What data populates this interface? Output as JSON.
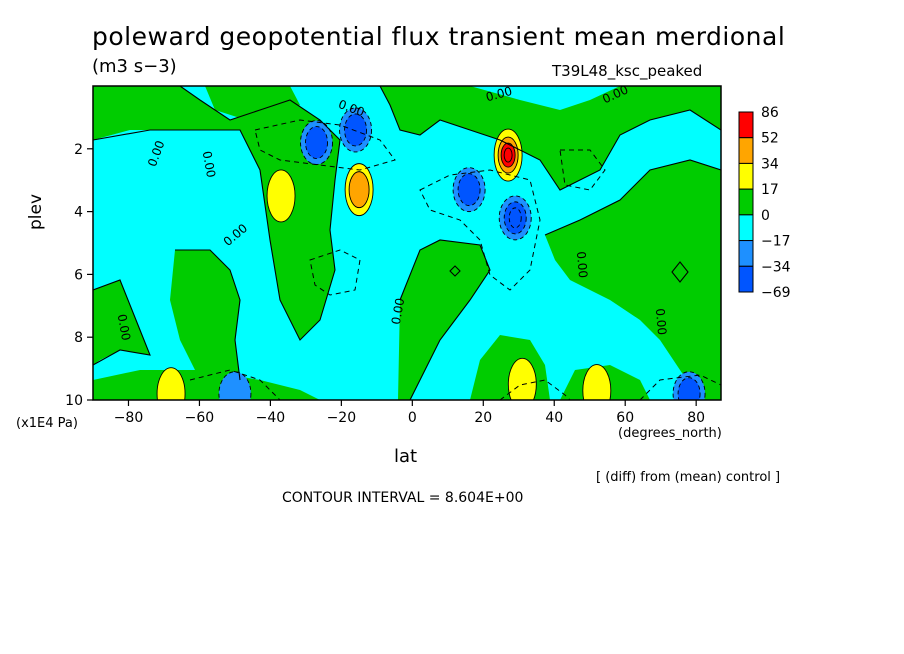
{
  "chart_data": {
    "type": "heatmap",
    "title": "poleward geopotential flux transient mean merdional",
    "units": "(m3 s−3)",
    "run_label": "T39L48_ksc_peaked",
    "xlabel": "lat",
    "x_units": "(degrees_north)",
    "ylabel": "plev",
    "y_units": "(x1E4 Pa)",
    "xlim": [
      -90,
      87
    ],
    "ylim": [
      10,
      0
    ],
    "x_ticks": [
      -80,
      -60,
      -40,
      -20,
      0,
      20,
      40,
      60,
      80
    ],
    "y_ticks": [
      2,
      4,
      6,
      8,
      10
    ],
    "x_tick_labels": [
      "−80",
      "−60",
      "−40",
      "−20",
      "0",
      "20",
      "40",
      "60",
      "80"
    ],
    "y_tick_labels": [
      "2",
      "4",
      "6",
      "8",
      "10"
    ],
    "colorbar_levels": [
      86,
      52,
      34,
      17,
      0,
      -17,
      -34,
      -69
    ],
    "colorbar_labels": [
      "86",
      "52",
      "34",
      "17",
      "0",
      "−17",
      "−34",
      "−69"
    ],
    "colors": [
      "#ff0000",
      "#ffa500",
      "#ffff00",
      "#00cc00",
      "#00ffff",
      "#1e90ff",
      "#0055ff"
    ],
    "contour_label": "0.00",
    "contour_interval_text": "CONTOUR INTERVAL = 8.604E+00",
    "diff_note": "[ (diff) from (mean) control ]",
    "features": [
      {
        "kind": "max",
        "lat": 27,
        "plev": 2.2,
        "value": 86
      },
      {
        "kind": "max",
        "lat": -15,
        "plev": 3.3,
        "value": 34
      },
      {
        "kind": "max",
        "lat": -37,
        "plev": 3.5,
        "value": 17
      },
      {
        "kind": "max",
        "lat": -68,
        "plev": 9.8,
        "value": 17
      },
      {
        "kind": "max",
        "lat": 52,
        "plev": 9.7,
        "value": 17
      },
      {
        "kind": "max",
        "lat": 31,
        "plev": 9.5,
        "value": 17
      },
      {
        "kind": "min",
        "lat": -27,
        "plev": 1.8,
        "value": -34
      },
      {
        "kind": "min",
        "lat": -16,
        "plev": 1.4,
        "value": -34
      },
      {
        "kind": "min",
        "lat": 16,
        "plev": 3.3,
        "value": -34
      },
      {
        "kind": "min",
        "lat": 29,
        "plev": 4.2,
        "value": -69
      },
      {
        "kind": "min",
        "lat": 78,
        "plev": 9.8,
        "value": -34
      },
      {
        "kind": "min",
        "lat": -50,
        "plev": 9.8,
        "value": -17
      }
    ]
  }
}
